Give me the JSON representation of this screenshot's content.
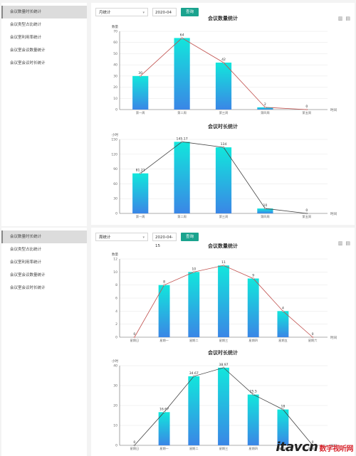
{
  "panels": [
    {
      "sidebar": [
        "会议数量时长统计",
        "会议类型占比统计",
        "会议室利用率统计",
        "会议室会议数量统计",
        "会议室会议时长统计"
      ],
      "active_index": 0,
      "filter": {
        "select": "月统计",
        "date": "2020-04",
        "button": "查询"
      },
      "charts": [
        {
          "title": "会议数量统计",
          "ylabel": "数量",
          "xlabel": "时间",
          "categories": [
            "第一周",
            "第二周",
            "第三周",
            "第四周",
            "第五周"
          ],
          "values": [
            30,
            64,
            42,
            2,
            0
          ],
          "labels": [
            "30",
            "64",
            "42",
            "2",
            "0"
          ],
          "ylim": [
            0,
            70
          ],
          "yticks": [
            0,
            10,
            20,
            30,
            40,
            50,
            60,
            70
          ],
          "line_color": "#c0504d"
        },
        {
          "title": "会议时长统计",
          "ylabel": "小时",
          "xlabel": "时间",
          "categories": [
            "第一周",
            "第二周",
            "第三周",
            "第四周",
            "第五周"
          ],
          "values": [
            81.21,
            145.17,
            134,
            10,
            0
          ],
          "labels": [
            "81.21",
            "145.17",
            "134",
            "10",
            "0"
          ],
          "ylim": [
            0,
            150
          ],
          "yticks": [
            0,
            30,
            60,
            90,
            120,
            150
          ],
          "line_color": "#444444"
        }
      ]
    },
    {
      "sidebar": [
        "会议数量时长统计",
        "会议类型占比统计",
        "会议室利用率统计",
        "会议室会议数量统计",
        "会议室会议时长统计"
      ],
      "active_index": 0,
      "filter": {
        "select": "周统计",
        "date": "2020-04-15",
        "button": "查询"
      },
      "charts": [
        {
          "title": "会议数量统计",
          "ylabel": "数量",
          "xlabel": "时间",
          "categories": [
            "星期日",
            "星期一",
            "星期二",
            "星期三",
            "星期四",
            "星期五",
            "星期六"
          ],
          "values": [
            0,
            8,
            10,
            11,
            9,
            4,
            0
          ],
          "labels": [
            "0",
            "8",
            "10",
            "11",
            "9",
            "4",
            "0"
          ],
          "ylim": [
            0,
            12
          ],
          "yticks": [
            0,
            2,
            4,
            6,
            8,
            10,
            12
          ],
          "line_color": "#c0504d"
        },
        {
          "title": "会议时长统计",
          "ylabel": "小时",
          "xlabel": "时间",
          "categories": [
            "星期日",
            "星期一",
            "星期二",
            "星期三",
            "星期四",
            "星期五",
            "星期六"
          ],
          "values": [
            0,
            16.67,
            34.67,
            38.97,
            25.5,
            18,
            0
          ],
          "labels": [
            "0",
            "16.67",
            "34.67",
            "38.97",
            "25.5",
            "18",
            "0"
          ],
          "ylim": [
            0,
            40
          ],
          "yticks": [
            0,
            10,
            20,
            30,
            40
          ],
          "line_color": "#444444"
        }
      ]
    }
  ],
  "chart_data": [
    {
      "type": "bar",
      "title": "会议数量统计",
      "ylabel": "数量",
      "xlabel": "时间",
      "categories": [
        "第一周",
        "第二周",
        "第三周",
        "第四周",
        "第五周"
      ],
      "values": [
        30,
        64,
        42,
        2,
        0
      ],
      "ylim": [
        0,
        70
      ]
    },
    {
      "type": "bar",
      "title": "会议时长统计",
      "ylabel": "小时",
      "xlabel": "时间",
      "categories": [
        "第一周",
        "第二周",
        "第三周",
        "第四周",
        "第五周"
      ],
      "values": [
        81.21,
        145.17,
        134,
        10,
        0
      ],
      "ylim": [
        0,
        150
      ]
    },
    {
      "type": "bar",
      "title": "会议数量统计",
      "ylabel": "数量",
      "xlabel": "时间",
      "categories": [
        "星期日",
        "星期一",
        "星期二",
        "星期三",
        "星期四",
        "星期五",
        "星期六"
      ],
      "values": [
        0,
        8,
        10,
        11,
        9,
        4,
        0
      ],
      "ylim": [
        0,
        12
      ]
    },
    {
      "type": "bar",
      "title": "会议时长统计",
      "ylabel": "小时",
      "xlabel": "时间",
      "categories": [
        "星期日",
        "星期一",
        "星期二",
        "星期三",
        "星期四",
        "星期五",
        "星期六"
      ],
      "values": [
        0,
        16.67,
        34.67,
        38.97,
        25.5,
        18,
        0
      ],
      "ylim": [
        0,
        40
      ]
    }
  ],
  "watermark": {
    "text": "itavcn",
    "sub": "数字视听网"
  },
  "colors": {
    "bar_top": "#12e6dc",
    "bar_bottom": "#3a86e6",
    "accent": "#1aa38e"
  },
  "icons": [
    "bar-chart-icon",
    "save-icon"
  ]
}
